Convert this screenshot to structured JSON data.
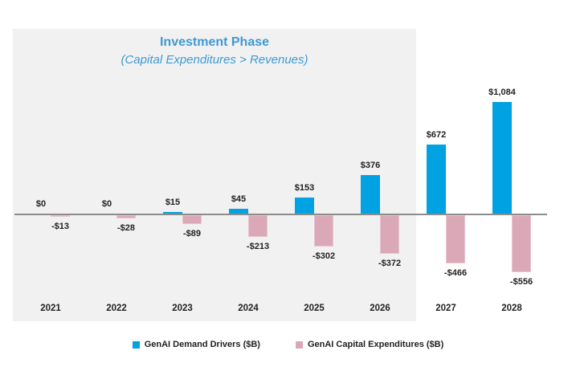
{
  "chart_title": "Investment Phase",
  "chart_subtitle": "(Capital Expenditures > Revenues)",
  "colors": {
    "demand_blue": "#00A2E1",
    "capex_pink": "#DBA8B8",
    "title_blue": "#3D9AD4",
    "highlight_box_gray": "#F1F1F1",
    "axis_line_gray": "#8C8C8C",
    "label_text": "#231F20"
  },
  "chart_data": {
    "type": "bar",
    "categories": [
      "2021",
      "2022",
      "2023",
      "2024",
      "2025",
      "2026",
      "2027",
      "2028"
    ],
    "series": [
      {
        "name": "GenAI Demand Drivers ($B)",
        "color": "#00A2E1",
        "values": [
          0,
          0,
          15,
          45,
          153,
          376,
          672,
          1084
        ],
        "labels": [
          "$0",
          "$0",
          "$15",
          "$45",
          "$153",
          "$376",
          "$672",
          "$1,084"
        ]
      },
      {
        "name": "GenAI Capital Expenditures ($B)",
        "color": "#DBA8B8",
        "values": [
          -13,
          -28,
          -89,
          -213,
          -302,
          -372,
          -466,
          -556
        ],
        "labels": [
          "-$13",
          "-$28",
          "-$89",
          "-$213",
          "-$302",
          "-$372",
          "-$466",
          "-$556"
        ]
      }
    ],
    "title": "Investment Phase",
    "subtitle": "(Capital Expenditures > Revenues)",
    "annotation": {
      "highlight_box_label": "Investment Phase",
      "highlight_box_sublabel": "(Capital Expenditures > Revenues)",
      "highlight_box_covers": [
        "2021",
        "2022",
        "2023",
        "2024",
        "2025",
        "2026"
      ]
    },
    "xlabel": "",
    "ylabel": "",
    "ylim": [
      -700,
      1200
    ],
    "grid": false,
    "zero_baseline": true,
    "legend_position": "bottom"
  },
  "legend": {
    "items": [
      {
        "label": "GenAI Demand Drivers ($B)",
        "color": "#00A2E1"
      },
      {
        "label": "GenAI Capital Expenditures ($B)",
        "color": "#DBA8B8"
      }
    ]
  }
}
